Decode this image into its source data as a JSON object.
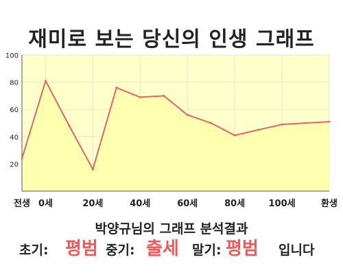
{
  "title": "재미로 보는 당신의 인생 그래프",
  "subtitle": "박양규님의 그래프 분석결과",
  "summary": {
    "early_label": "초기:",
    "early_value": "평범",
    "mid_label": "중기:",
    "mid_value": "출세",
    "late_label": "말기:",
    "late_value": "평범",
    "ending": "입니다"
  },
  "colors": {
    "plot_fill": "#ffffcc",
    "line": "#e06666",
    "area": "#ffffb0",
    "highlight": "#ee5a5a"
  },
  "chart_data": {
    "type": "area",
    "x": [
      -10,
      0,
      10,
      20,
      30,
      40,
      50,
      60,
      70,
      80,
      90,
      100,
      110,
      120
    ],
    "y": [
      24,
      81,
      48,
      16,
      76,
      69,
      70,
      56,
      50,
      41,
      45,
      49,
      50,
      51
    ],
    "ylim": [
      0,
      100
    ],
    "yticks": [
      20,
      40,
      60,
      80,
      100
    ],
    "xticks": [
      {
        "x": -10,
        "label": "전생"
      },
      {
        "x": 0,
        "label": "0세"
      },
      {
        "x": 20,
        "label": "20세"
      },
      {
        "x": 40,
        "label": "40세"
      },
      {
        "x": 60,
        "label": "60세"
      },
      {
        "x": 80,
        "label": "80세"
      },
      {
        "x": 100,
        "label": "100세"
      },
      {
        "x": 120,
        "label": "환생"
      }
    ],
    "grid": true
  }
}
